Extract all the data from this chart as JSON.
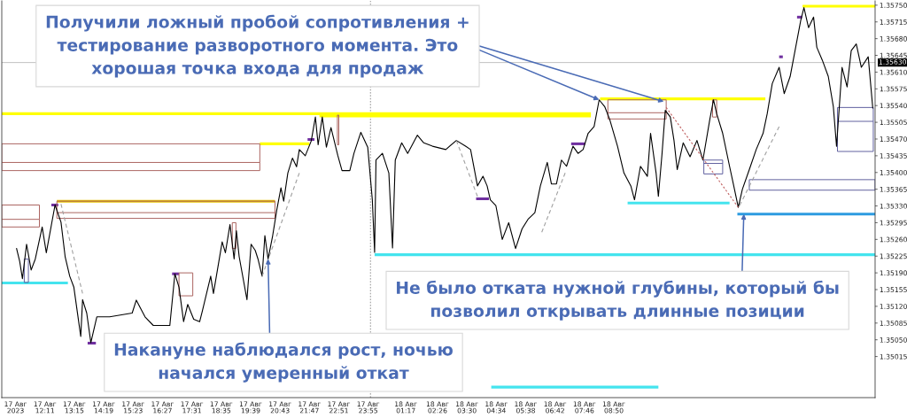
{
  "chart_data": {
    "type": "line",
    "xlim": [
      "2023-08-17T10:37",
      "2023-08-18T18:19"
    ],
    "ylim": [
      1.34929,
      1.35759
    ],
    "xticks": [
      {
        "value": "2023-08-17T11:07",
        "label": "17 Авг 2023"
      },
      {
        "value": "2023-08-17T12:11",
        "label": "17 Авг 12:11"
      },
      {
        "value": "2023-08-17T13:15",
        "label": "17 Авг 13:15"
      },
      {
        "value": "2023-08-17T14:19",
        "label": "17 Авг 14:19"
      },
      {
        "value": "2023-08-17T15:23",
        "label": "17 Авг 15:23"
      },
      {
        "value": "2023-08-17T16:27",
        "label": "17 Авг 16:27"
      },
      {
        "value": "2023-08-17T17:31",
        "label": "17 Авг 17:31"
      },
      {
        "value": "2023-08-17T18:35",
        "label": "17 Авг 18:35"
      },
      {
        "value": "2023-08-17T19:39",
        "label": "17 Авг 19:39"
      },
      {
        "value": "2023-08-17T20:43",
        "label": "17 Авг 20:43"
      },
      {
        "value": "2023-08-17T21:47",
        "label": "17 Авг 21:47"
      },
      {
        "value": "2023-08-17T22:51",
        "label": "17 Авг 22:51"
      },
      {
        "value": "2023-08-17T23:55",
        "label": "17 Авг 23:55"
      },
      {
        "value": "2023-08-18T01:17",
        "label": "18 Авг 01:17"
      },
      {
        "value": "2023-08-18T02:26",
        "label": "18 Авг 02:26"
      },
      {
        "value": "2023-08-18T03:30",
        "label": "18 Авг 03:30"
      },
      {
        "value": "2023-08-18T04:34",
        "label": "18 Авг 04:34"
      },
      {
        "value": "2023-08-18T05:38",
        "label": "18 Авг 05:38"
      },
      {
        "value": "2023-08-18T06:42",
        "label": "18 Авг 06:42"
      },
      {
        "value": "2023-08-18T07:46",
        "label": "18 Авг 07:46"
      },
      {
        "value": "2023-08-18T08:50",
        "label": "18 Авг 08:50"
      }
    ],
    "yticks": [
      1.35015,
      {
        "value": 1.3505,
        "label": "1.35050"
      },
      1.35085,
      {
        "value": 1.3512,
        "label": "1.35120"
      },
      1.35155,
      {
        "value": 1.3519,
        "label": "1.35190"
      },
      1.35225,
      {
        "value": 1.3526,
        "label": "1.35260"
      },
      1.35295,
      {
        "value": 1.3533,
        "label": "1.35330"
      },
      1.35365,
      {
        "value": 1.354,
        "label": "1.35400"
      },
      1.35435,
      {
        "value": 1.3547,
        "label": "1.35470"
      },
      1.35505,
      {
        "value": 1.3554,
        "label": "1.35540"
      },
      1.35575,
      {
        "value": 1.3561,
        "label": "1.35610"
      },
      1.35645,
      {
        "value": 1.3568,
        "label": "1.35680"
      },
      1.35715,
      {
        "value": 1.3575,
        "label": "1.35750"
      }
    ],
    "series": [
      {
        "color": "#000000",
        "x": [
          "2023-08-17T11:09",
          "2023-08-17T11:16",
          "2023-08-17T11:22",
          "2023-08-17T11:31",
          "2023-08-17T11:41",
          "2023-08-17T11:50",
          "2023-08-17T12:05",
          "2023-08-17T12:14",
          "2023-08-17T12:33",
          "2023-08-17T12:46",
          "2023-08-17T12:55",
          "2023-08-17T13:05",
          "2023-08-17T13:14",
          "2023-08-17T13:29",
          "2023-08-17T13:33",
          "2023-08-17T13:42",
          "2023-08-17T13:51",
          "2023-08-17T14:04",
          "2023-08-17T14:32",
          "2023-08-17T15:21",
          "2023-08-17T15:30",
          "2023-08-17T15:49",
          "2023-08-17T16:07",
          "2023-08-17T16:43",
          "2023-08-17T16:54",
          "2023-08-17T17:03",
          "2023-08-17T17:13",
          "2023-08-17T17:22",
          "2023-08-17T17:35",
          "2023-08-17T17:48",
          "2023-08-17T17:54",
          "2023-08-17T18:12",
          "2023-08-17T18:18",
          "2023-08-17T18:37",
          "2023-08-17T18:44",
          "2023-08-17T18:54",
          "2023-08-17T19:03",
          "2023-08-17T19:08",
          "2023-08-17T19:14",
          "2023-08-17T19:31",
          "2023-08-17T19:40",
          "2023-08-17T19:49",
          "2023-08-17T19:55",
          "2023-08-17T20:04",
          "2023-08-17T20:10",
          "2023-08-17T20:17",
          "2023-08-17T20:27",
          "2023-08-17T20:36",
          "2023-08-17T20:45",
          "2023-08-17T20:51",
          "2023-08-17T21:00",
          "2023-08-17T21:10",
          "2023-08-17T21:19",
          "2023-08-17T21:25",
          "2023-08-17T21:38",
          "2023-08-17T21:51",
          "2023-08-17T22:00",
          "2023-08-17T22:06",
          "2023-08-17T22:15",
          "2023-08-17T22:24",
          "2023-08-17T22:34",
          "2023-08-17T22:49",
          "2023-08-17T22:58",
          "2023-08-17T23:15",
          "2023-08-17T23:24",
          "2023-08-17T23:39",
          "2023-08-17T23:54",
          "2023-08-18T00:04",
          "2023-08-18T00:09",
          "2023-08-18T00:12",
          "2023-08-18T00:26",
          "2023-08-18T00:40",
          "2023-08-18T00:48",
          "2023-08-18T00:54",
          "2023-08-18T01:08",
          "2023-08-18T01:21",
          "2023-08-18T01:42",
          "2023-08-18T01:56",
          "2023-08-18T02:15",
          "2023-08-18T02:44",
          "2023-08-18T03:07",
          "2023-08-18T03:27",
          "2023-08-18T03:38",
          "2023-08-18T03:53",
          "2023-08-18T04:05",
          "2023-08-18T04:14",
          "2023-08-18T04:21",
          "2023-08-18T04:33",
          "2023-08-18T04:47",
          "2023-08-18T05:01",
          "2023-08-18T05:16",
          "2023-08-18T05:30",
          "2023-08-18T05:43",
          "2023-08-18T05:58",
          "2023-08-18T06:10",
          "2023-08-18T06:25",
          "2023-08-18T06:34",
          "2023-08-18T06:45",
          "2023-08-18T06:56",
          "2023-08-18T07:07",
          "2023-08-18T07:21",
          "2023-08-18T07:32",
          "2023-08-18T07:43",
          "2023-08-18T07:54",
          "2023-08-18T08:07",
          "2023-08-18T08:18",
          "2023-08-18T08:30",
          "2023-08-18T08:41",
          "2023-08-18T08:58",
          "2023-08-18T09:12",
          "2023-08-18T09:27",
          "2023-08-18T09:35",
          "2023-08-18T09:48",
          "2023-08-18T10:03",
          "2023-08-18T10:10",
          "2023-08-18T10:22",
          "2023-08-18T10:27",
          "2023-08-18T10:35",
          "2023-08-18T10:42",
          "2023-08-18T10:53",
          "2023-08-18T11:01",
          "2023-08-18T11:08",
          "2023-08-18T11:21",
          "2023-08-18T11:36",
          "2023-08-18T11:51",
          "2023-08-18T12:04",
          "2023-08-18T12:19",
          "2023-08-18T12:27",
          "2023-08-18T12:34",
          "2023-08-18T12:47",
          "2023-08-18T13:02",
          "2023-08-18T13:10",
          "2023-08-18T13:21",
          "2023-08-18T13:30",
          "2023-08-18T13:45",
          "2023-08-18T14:00",
          "2023-08-18T14:15",
          "2023-08-18T14:24",
          "2023-08-18T14:35",
          "2023-08-18T14:50",
          "2023-08-18T15:01",
          "2023-08-18T15:14",
          "2023-08-18T15:26",
          "2023-08-18T15:37",
          "2023-08-18T15:44",
          "2023-08-18T15:54",
          "2023-08-18T16:05",
          "2023-08-18T16:12",
          "2023-08-18T16:24",
          "2023-08-18T16:37",
          "2023-08-18T16:48",
          "2023-08-18T16:55",
          "2023-08-18T17:07",
          "2023-08-18T17:18",
          "2023-08-18T17:27",
          "2023-08-18T17:38",
          "2023-08-18T17:49",
          "2023-08-18T18:04",
          "2023-08-18T18:14"
        ],
        "values": [
          1.35242,
          1.35214,
          1.35178,
          1.3525,
          1.35196,
          1.35219,
          1.35286,
          1.35232,
          1.35332,
          1.35296,
          1.35224,
          1.35183,
          1.3516,
          1.35057,
          1.35134,
          1.35106,
          1.35044,
          1.35098,
          1.35098,
          1.35106,
          1.35133,
          1.35098,
          1.3508,
          1.3508,
          1.35188,
          1.3516,
          1.35088,
          1.35124,
          1.35093,
          1.35088,
          1.35111,
          1.35183,
          1.35147,
          1.35255,
          1.35232,
          1.35291,
          1.35219,
          1.35278,
          1.35224,
          1.35134,
          1.3525,
          1.35237,
          1.35219,
          1.35183,
          1.35268,
          1.35219,
          1.35268,
          1.35322,
          1.35368,
          1.3534,
          1.35399,
          1.3543,
          1.35412,
          1.35448,
          1.35435,
          1.35466,
          1.35516,
          1.35458,
          1.35516,
          1.35453,
          1.35494,
          1.35435,
          1.35404,
          1.35404,
          1.3544,
          1.35484,
          1.35453,
          1.35343,
          1.35233,
          1.35426,
          1.3544,
          1.35399,
          1.35242,
          1.35426,
          1.35462,
          1.3544,
          1.35478,
          1.35462,
          1.35455,
          1.35448,
          1.35467,
          1.35455,
          1.35448,
          1.35372,
          1.35392,
          1.35372,
          1.35343,
          1.35331,
          1.3526,
          1.35295,
          1.35241,
          1.35282,
          1.35302,
          1.35316,
          1.35372,
          1.35421,
          1.35376,
          1.35376,
          1.35426,
          1.35413,
          1.35455,
          1.3544,
          1.35448,
          1.35482,
          1.35496,
          1.35552,
          1.35538,
          1.35511,
          1.35455,
          1.35399,
          1.35372,
          1.35343,
          1.35413,
          1.35392,
          1.35482,
          1.35399,
          1.3535,
          1.3544,
          1.3553,
          1.35516,
          1.35467,
          1.35406,
          1.35462,
          1.35433,
          1.35467,
          1.35426,
          1.35511,
          1.35552,
          1.35523,
          1.35482,
          1.35413,
          1.35377,
          1.35327,
          1.35365,
          1.35406,
          1.35448,
          1.35482,
          1.35523,
          1.35586,
          1.3562,
          1.35565,
          1.35601,
          1.35662,
          1.35718,
          1.35745,
          1.35703,
          1.35725,
          1.35662,
          1.35635,
          1.35601,
          1.35538,
          1.35455,
          1.3562,
          1.35579,
          1.35655,
          1.35669,
          1.3562,
          1.35642,
          1.35534
        ]
      },
      {
        "color": "#ffff00",
        "x": [
          "2023-08-17T10:37",
          "2023-08-18T08:00"
        ],
        "values": [
          1.35523,
          1.35523
        ]
      },
      {
        "color": "#ffff00",
        "x": [
          "2023-08-17T22:09",
          "2023-08-18T08:00"
        ],
        "values": [
          1.35518,
          1.35518
        ]
      },
      {
        "color": "#ffff00",
        "x": [
          "2023-08-17T19:59",
          "2023-08-17T21:47"
        ],
        "values": [
          1.3546,
          1.3546
        ]
      },
      {
        "color": "#e8c400",
        "x": [
          "2023-08-17T12:37",
          "2023-08-17T20:32"
        ],
        "values": [
          1.3534,
          1.3534
        ]
      },
      {
        "color": "#ffff00",
        "x": [
          "2023-08-18T08:20",
          "2023-08-18T14:20"
        ],
        "values": [
          1.35554,
          1.35554
        ]
      },
      {
        "color": "#ffff00",
        "x": [
          "2023-08-18T15:41",
          "2023-08-18T18:19"
        ],
        "values": [
          1.35748,
          1.35748
        ]
      },
      {
        "color": "#44e4ee",
        "x": [
          "2023-08-17T10:37",
          "2023-08-17T13:01"
        ],
        "values": [
          1.35169,
          1.35169
        ]
      },
      {
        "color": "#44e4ee",
        "x": [
          "2023-08-18T00:09",
          "2023-08-18T18:19"
        ],
        "values": [
          1.35228,
          1.35228
        ]
      },
      {
        "color": "#44e4ee",
        "x": [
          "2023-08-18T09:20",
          "2023-08-18T13:02"
        ],
        "values": [
          1.35336,
          1.35336
        ]
      },
      {
        "color": "#2d9be0",
        "x": [
          "2023-08-18T13:19",
          "2023-08-18T18:19"
        ],
        "values": [
          1.35313,
          1.35313
        ]
      },
      {
        "color": "#44e4ee",
        "x": [
          "2023-08-18T04:23",
          "2023-08-18T10:27"
        ],
        "values": [
          1.34951,
          1.34951
        ]
      },
      {
        "color": "#7030a0",
        "x": [
          "2023-08-17T12:25",
          "2023-08-17T12:40"
        ],
        "values": [
          1.35332,
          1.35332
        ]
      },
      {
        "color": "#7030a0",
        "x": [
          "2023-08-17T13:44",
          "2023-08-17T14:02"
        ],
        "values": [
          1.35043,
          1.35043
        ]
      },
      {
        "color": "#7030a0",
        "x": [
          "2023-08-17T16:48",
          "2023-08-17T17:03"
        ],
        "values": [
          1.35188,
          1.35188
        ]
      },
      {
        "color": "#7030a0",
        "x": [
          "2023-08-17T21:43",
          "2023-08-17T21:58"
        ],
        "values": [
          1.35469,
          1.35469
        ]
      },
      {
        "color": "#7030a0",
        "x": [
          "2023-08-18T03:50",
          "2023-08-18T04:18"
        ],
        "values": [
          1.35345,
          1.35345
        ]
      },
      {
        "color": "#7030a0",
        "x": [
          "2023-08-18T07:17",
          "2023-08-18T07:47"
        ],
        "values": [
          1.3546,
          1.3546
        ]
      },
      {
        "color": "#7030a0",
        "x": [
          "2023-08-18T14:50",
          "2023-08-18T14:58"
        ],
        "values": [
          1.35642,
          1.35642
        ]
      },
      {
        "color": "#7030a0",
        "x": [
          "2023-08-18T15:29",
          "2023-08-18T15:40"
        ],
        "values": [
          1.35725,
          1.35725
        ]
      },
      {
        "color": "#a0a0a0",
        "line_style": "dashed",
        "x": [
          "2023-08-17T12:46",
          "2023-08-17T13:33"
        ],
        "values": [
          1.35334,
          1.35147
        ]
      },
      {
        "color": "#a0a0a0",
        "line_style": "dashed",
        "x": [
          "2023-08-17T20:04",
          "2023-08-17T21:25"
        ],
        "values": [
          1.35183,
          1.35399
        ]
      },
      {
        "color": "#a0a0a0",
        "line_style": "dashed",
        "x": [
          "2023-08-18T03:07",
          "2023-08-18T03:53"
        ],
        "values": [
          1.35467,
          1.3535
        ]
      },
      {
        "color": "#a0a0a0",
        "line_style": "dashed",
        "x": [
          "2023-08-18T06:13",
          "2023-08-18T07:04"
        ],
        "values": [
          1.35275,
          1.35399
        ]
      },
      {
        "color": "#c06060",
        "line_style": "dotted",
        "x": [
          "2023-08-18T10:44",
          "2023-08-18T13:21"
        ],
        "values": [
          1.35536,
          1.35327
        ]
      },
      {
        "color": "#a0a0a0",
        "line_style": "dashed",
        "x": [
          "2023-08-18T13:24",
          "2023-08-18T14:50"
        ],
        "values": [
          1.35331,
          1.35496
        ]
      },
      {
        "color": "#a8605c",
        "x": [
          "2023-08-17T10:37",
          "2023-08-17T10:37",
          "2023-08-17T19:59",
          "2023-08-17T19:59"
        ],
        "values": [
          1.35404,
          1.3546,
          1.3546,
          1.35421
        ]
      },
      {
        "color": "#a8605c",
        "x": [
          "2023-08-17T10:37",
          "2023-08-17T19:59",
          "2023-08-17T19:59",
          "2023-08-17T10:37"
        ],
        "values": [
          1.35421,
          1.35421,
          1.35404,
          1.35404
        ]
      },
      {
        "color": "#a8605c",
        "x": [
          "2023-08-17T10:37",
          "2023-08-17T10:37",
          "2023-08-17T11:59",
          "2023-08-17T11:59"
        ],
        "values": [
          1.35286,
          1.35332,
          1.35332,
          1.35302
        ]
      },
      {
        "color": "#a8605c",
        "x": [
          "2023-08-17T10:37",
          "2023-08-17T11:59",
          "2023-08-17T11:59",
          "2023-08-17T10:37"
        ],
        "values": [
          1.35302,
          1.35302,
          1.35286,
          1.35286
        ]
      },
      {
        "color": "#a8605c",
        "x": [
          "2023-08-17T12:37",
          "2023-08-17T12:37",
          "2023-08-17T20:32",
          "2023-08-17T20:32"
        ],
        "values": [
          1.35304,
          1.3534,
          1.3534,
          1.35316
        ]
      },
      {
        "color": "#a8605c",
        "x": [
          "2023-08-17T12:37",
          "2023-08-17T20:32",
          "2023-08-17T20:32",
          "2023-08-17T12:37"
        ],
        "values": [
          1.35316,
          1.35316,
          1.35304,
          1.35304
        ]
      },
      {
        "color": "#5c5c9c",
        "x": [
          "2023-08-17T11:26",
          "2023-08-17T11:26",
          "2023-08-17T11:35"
        ],
        "values": [
          1.3517,
          1.35219,
          1.35219
        ]
      },
      {
        "color": "#5c5c9c",
        "x": [
          "2023-08-17T11:35",
          "2023-08-17T11:35",
          "2023-08-17T11:26"
        ],
        "values": [
          1.35219,
          1.3517,
          1.3517
        ]
      },
      {
        "color": "#a8605c",
        "x": [
          "2023-08-17T17:03",
          "2023-08-17T17:03",
          "2023-08-17T17:33"
        ],
        "values": [
          1.35142,
          1.3519,
          1.3519
        ]
      },
      {
        "color": "#a8605c",
        "x": [
          "2023-08-17T17:33",
          "2023-08-17T17:33",
          "2023-08-17T17:03"
        ],
        "values": [
          1.3519,
          1.35142,
          1.35142
        ]
      },
      {
        "color": "#a8605c",
        "x": [
          "2023-08-17T18:59",
          "2023-08-17T18:59",
          "2023-08-17T19:07"
        ],
        "values": [
          1.35241,
          1.35295,
          1.35295
        ]
      },
      {
        "color": "#a8605c",
        "x": [
          "2023-08-17T19:07",
          "2023-08-17T19:07",
          "2023-08-17T18:59"
        ],
        "values": [
          1.35295,
          1.35241,
          1.35241
        ]
      },
      {
        "color": "#a8605c",
        "x": [
          "2023-08-17T22:48",
          "2023-08-17T22:48",
          "2023-08-17T22:51"
        ],
        "values": [
          1.35458,
          1.3552,
          1.3552
        ]
      },
      {
        "color": "#a8605c",
        "x": [
          "2023-08-17T22:51",
          "2023-08-17T22:51",
          "2023-08-17T22:48"
        ],
        "values": [
          1.3552,
          1.35458,
          1.35458
        ]
      },
      {
        "color": "#a8605c",
        "x": [
          "2023-08-18T08:37",
          "2023-08-18T08:37",
          "2023-08-18T10:44",
          "2023-08-18T10:44"
        ],
        "values": [
          1.35512,
          1.35552,
          1.35552,
          1.35525
        ]
      },
      {
        "color": "#a8605c",
        "x": [
          "2023-08-18T08:37",
          "2023-08-18T10:44",
          "2023-08-18T10:44",
          "2023-08-18T08:37"
        ],
        "values": [
          1.35525,
          1.35525,
          1.35512,
          1.35512
        ]
      },
      {
        "color": "#5c5c9c",
        "x": [
          "2023-08-18T12:06",
          "2023-08-18T12:06",
          "2023-08-18T12:47",
          "2023-08-18T12:47"
        ],
        "values": [
          1.35397,
          1.35426,
          1.35426,
          1.35419
        ]
      },
      {
        "color": "#5c5c9c",
        "x": [
          "2023-08-18T12:06",
          "2023-08-18T12:47",
          "2023-08-18T12:47",
          "2023-08-18T12:06"
        ],
        "values": [
          1.35419,
          1.35419,
          1.35397,
          1.35397
        ]
      },
      {
        "color": "#a8605c",
        "x": [
          "2023-08-18T12:25",
          "2023-08-18T12:25",
          "2023-08-18T12:34"
        ],
        "values": [
          1.35516,
          1.35552,
          1.35552
        ]
      },
      {
        "color": "#a8605c",
        "x": [
          "2023-08-18T12:34",
          "2023-08-18T12:34",
          "2023-08-18T12:25"
        ],
        "values": [
          1.35552,
          1.35516,
          1.35516
        ]
      },
      {
        "color": "#5c5c9c",
        "x": [
          "2023-08-18T13:45",
          "2023-08-18T13:45",
          "2023-08-18T18:19"
        ],
        "values": [
          1.35363,
          1.35385,
          1.35385
        ]
      },
      {
        "color": "#5c5c9c",
        "x": [
          "2023-08-18T18:19",
          "2023-08-18T18:19",
          "2023-08-18T13:45"
        ],
        "values": [
          1.35385,
          1.35363,
          1.35363
        ]
      },
      {
        "color": "#5c5c9c",
        "x": [
          "2023-08-18T16:57",
          "2023-08-18T16:57",
          "2023-08-18T18:15",
          "2023-08-18T18:15"
        ],
        "values": [
          1.35444,
          1.35536,
          1.35536,
          1.35507
        ]
      },
      {
        "color": "#5c5c9c",
        "x": [
          "2023-08-18T16:57",
          "2023-08-18T18:15",
          "2023-08-18T18:15",
          "2023-08-18T16:57"
        ],
        "values": [
          1.35507,
          1.35507,
          1.35444,
          1.35444
        ]
      }
    ],
    "ref_lines": [
      {
        "axis": "y",
        "value": 1.3563,
        "label": "1.35630",
        "color": "#b4b4b4"
      },
      {
        "axis": "x",
        "value": "2023-08-18T00:00",
        "color": "#808080",
        "line_style": "dotted"
      }
    ],
    "annotations": [
      {
        "text": "Получили ложный пробой сопротивления +\nтестирование разворотного момента. Это\nхорошая точка входа для продаж",
        "x": "2023-08-18T08:18",
        "y": 1.35552
      },
      {
        "text": "Не было отката нужной глубины, который бы\nпозволил открывать длинные позиции",
        "x": "2023-08-18T13:33",
        "y": 1.35313
      },
      {
        "text": "Накануне наблюдался рост, ночью\nначался умеренный откат",
        "x": "2023-08-17T20:17",
        "y": 1.35219
      }
    ]
  }
}
